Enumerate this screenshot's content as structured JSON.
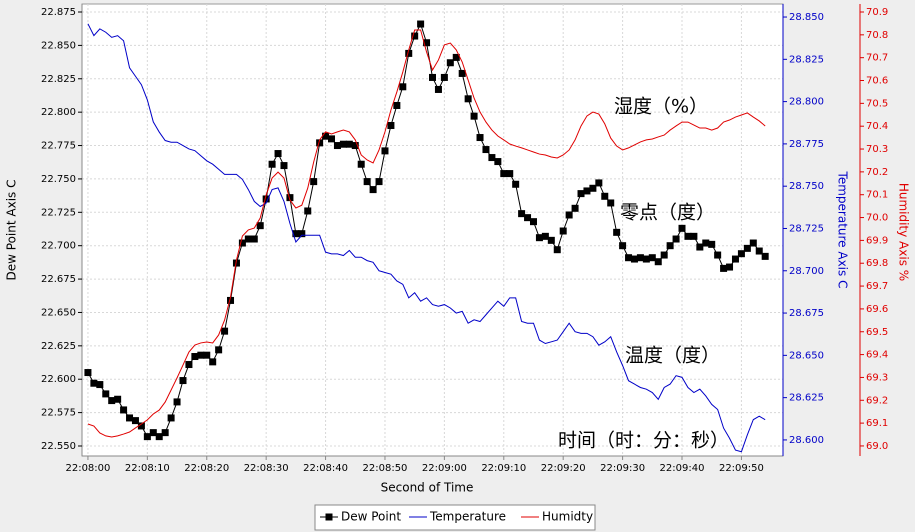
{
  "chart_data": {
    "type": "line",
    "x_label": "Second of Time",
    "y_label": "Dew Point Axis C",
    "y2_label": "Temperature Axis C",
    "y3_label": "Humidity Axis %",
    "annotations": [
      "湿度（%）",
      "零点（度）",
      "温度（度）",
      "时间（时：分：秒）"
    ],
    "grid": true,
    "legend": "bottom",
    "x": [
      "22:08:00",
      "22:08:01",
      "22:08:02",
      "22:08:03",
      "22:08:04",
      "22:08:05",
      "22:08:06",
      "22:08:07",
      "22:08:08",
      "22:08:09",
      "22:08:10",
      "22:08:11",
      "22:08:12",
      "22:08:13",
      "22:08:14",
      "22:08:15",
      "22:08:16",
      "22:08:17",
      "22:08:18",
      "22:08:19",
      "22:08:20",
      "22:08:21",
      "22:08:22",
      "22:08:23",
      "22:08:24",
      "22:08:25",
      "22:08:26",
      "22:08:27",
      "22:08:28",
      "22:08:29",
      "22:08:30",
      "22:08:31",
      "22:08:32",
      "22:08:33",
      "22:08:34",
      "22:08:35",
      "22:08:36",
      "22:08:37",
      "22:08:38",
      "22:08:39",
      "22:08:40",
      "22:08:41",
      "22:08:42",
      "22:08:43",
      "22:08:44",
      "22:08:45",
      "22:08:46",
      "22:08:47",
      "22:08:48",
      "22:08:49",
      "22:08:50",
      "22:08:51",
      "22:08:52",
      "22:08:53",
      "22:08:54",
      "22:08:55",
      "22:08:56",
      "22:08:57",
      "22:08:58",
      "22:08:59",
      "22:09:00",
      "22:09:01",
      "22:09:02",
      "22:09:03",
      "22:09:04",
      "22:09:05",
      "22:09:06",
      "22:09:07",
      "22:09:08",
      "22:09:09",
      "22:09:10",
      "22:09:11",
      "22:09:12",
      "22:09:13",
      "22:09:14",
      "22:09:15",
      "22:09:16",
      "22:09:17",
      "22:09:18",
      "22:09:19",
      "22:09:20",
      "22:09:21",
      "22:09:22",
      "22:09:23",
      "22:09:24",
      "22:09:25",
      "22:09:26",
      "22:09:27",
      "22:09:28",
      "22:09:29",
      "22:09:30",
      "22:09:31",
      "22:09:32",
      "22:09:33",
      "22:09:34",
      "22:09:35",
      "22:09:36",
      "22:09:37",
      "22:09:38",
      "22:09:39",
      "22:09:40",
      "22:09:41",
      "22:09:42",
      "22:09:43",
      "22:09:44",
      "22:09:45",
      "22:09:46",
      "22:09:47",
      "22:09:48",
      "22:09:49",
      "22:09:50",
      "22:09:51",
      "22:09:52",
      "22:09:53",
      "22:09:54"
    ],
    "xlim": [
      "22:07:59",
      "22:09:57"
    ],
    "xticks": [
      "22:08:00",
      "22:08:10",
      "22:08:20",
      "22:08:30",
      "22:08:40",
      "22:08:50",
      "22:09:00",
      "22:09:10",
      "22:09:20",
      "22:09:30",
      "22:09:40",
      "22:09:50"
    ],
    "ylim": [
      22.5425,
      22.881
    ],
    "yticks": [
      {
        "value": 22.55,
        "label": "22.550"
      },
      {
        "value": 22.575,
        "label": "22.575"
      },
      {
        "value": 22.6,
        "label": "22.600"
      },
      {
        "value": 22.625,
        "label": "22.625"
      },
      {
        "value": 22.65,
        "label": "22.650"
      },
      {
        "value": 22.675,
        "label": "22.675"
      },
      {
        "value": 22.7,
        "label": "22.700"
      },
      {
        "value": 22.725,
        "label": "22.725"
      },
      {
        "value": 22.75,
        "label": "22.750"
      },
      {
        "value": 22.775,
        "label": "22.775"
      },
      {
        "value": 22.8,
        "label": "22.800"
      },
      {
        "value": 22.825,
        "label": "22.825"
      },
      {
        "value": 22.85,
        "label": "22.850"
      },
      {
        "value": 22.875,
        "label": "22.875"
      }
    ],
    "y2lim": [
      28.5905,
      28.8577
    ],
    "y2ticks": [
      {
        "value": 28.6,
        "label": "28.600"
      },
      {
        "value": 28.625,
        "label": "28.625"
      },
      {
        "value": 28.65,
        "label": "28.650"
      },
      {
        "value": 28.675,
        "label": "28.675"
      },
      {
        "value": 28.7,
        "label": "28.700"
      },
      {
        "value": 28.725,
        "label": "28.725"
      },
      {
        "value": 28.75,
        "label": "28.750"
      },
      {
        "value": 28.775,
        "label": "28.775"
      },
      {
        "value": 28.8,
        "label": "28.800"
      },
      {
        "value": 28.825,
        "label": "28.825"
      },
      {
        "value": 28.85,
        "label": "28.850"
      }
    ],
    "y3lim": [
      68.956,
      70.935
    ],
    "y3ticks": [
      {
        "value": 69.0,
        "label": "69.0"
      },
      69.1,
      69.2,
      69.3,
      69.4,
      69.5,
      69.6,
      69.7,
      69.8,
      69.9,
      {
        "value": 70.0,
        "label": "70.0"
      },
      70.1,
      70.2,
      70.3,
      70.4,
      70.5,
      70.6,
      70.7,
      70.8,
      70.9
    ],
    "series": [
      {
        "name": "Dew Point",
        "color": "#000000",
        "axis": "y",
        "marker": "square",
        "values": [
          22.605,
          22.597,
          22.596,
          22.589,
          22.584,
          22.585,
          22.577,
          22.571,
          22.569,
          22.565,
          22.557,
          22.56,
          22.557,
          22.56,
          22.571,
          22.583,
          22.599,
          22.611,
          22.617,
          22.618,
          22.618,
          22.613,
          22.622,
          22.636,
          22.659,
          22.687,
          22.702,
          22.705,
          22.705,
          22.715,
          22.735,
          22.761,
          22.769,
          22.76,
          22.736,
          22.709,
          22.709,
          22.726,
          22.748,
          22.777,
          22.782,
          22.78,
          22.775,
          22.776,
          22.776,
          22.775,
          22.761,
          22.748,
          22.742,
          22.748,
          22.771,
          22.79,
          22.805,
          22.819,
          22.844,
          22.857,
          22.866,
          22.852,
          22.826,
          22.817,
          22.826,
          22.837,
          22.841,
          22.829,
          22.81,
          22.797,
          22.781,
          22.772,
          22.766,
          22.763,
          22.754,
          22.754,
          22.746,
          22.724,
          22.721,
          22.718,
          22.706,
          22.707,
          22.704,
          22.697,
          22.711,
          22.723,
          22.728,
          22.739,
          22.741,
          22.743,
          22.747,
          22.737,
          22.732,
          22.71,
          22.7,
          22.691,
          22.69,
          22.691,
          22.69,
          22.691,
          22.688,
          22.693,
          22.7,
          22.705,
          22.713,
          22.707,
          22.707,
          22.699,
          22.702,
          22.701,
          22.693,
          22.683,
          22.684,
          22.69,
          22.694,
          22.698,
          22.702,
          22.696,
          22.692
        ]
      },
      {
        "name": "Temperature",
        "color": "#0000c8",
        "axis": "y2",
        "values": [
          28.846,
          28.839,
          28.843,
          28.841,
          28.838,
          28.839,
          28.836,
          28.82,
          28.815,
          28.81,
          28.801,
          28.788,
          28.782,
          28.777,
          28.776,
          28.776,
          28.774,
          28.772,
          28.771,
          28.768,
          28.765,
          28.763,
          28.76,
          28.757,
          28.757,
          28.757,
          28.754,
          28.748,
          28.741,
          28.738,
          28.74,
          28.748,
          28.749,
          28.741,
          28.728,
          28.717,
          28.721,
          28.721,
          28.721,
          28.721,
          28.711,
          28.71,
          28.71,
          28.709,
          28.712,
          28.708,
          28.708,
          28.706,
          28.705,
          28.7,
          28.699,
          28.698,
          28.694,
          28.692,
          28.684,
          28.687,
          28.682,
          28.684,
          28.68,
          28.679,
          28.68,
          28.678,
          28.675,
          28.676,
          28.669,
          28.671,
          28.67,
          28.674,
          28.678,
          28.682,
          28.679,
          28.684,
          28.684,
          28.67,
          28.669,
          28.669,
          28.659,
          28.657,
          28.658,
          28.659,
          28.664,
          28.669,
          28.664,
          28.663,
          28.663,
          28.661,
          28.656,
          28.658,
          28.661,
          28.652,
          28.644,
          28.635,
          28.633,
          28.631,
          28.63,
          28.628,
          28.624,
          28.631,
          28.633,
          28.638,
          28.637,
          28.631,
          28.628,
          28.63,
          28.626,
          28.621,
          28.618,
          28.607,
          28.601,
          28.594,
          28.593,
          28.603,
          28.612,
          28.614,
          28.612
        ]
      },
      {
        "name": "Humidty",
        "color": "#e00000",
        "axis": "y3",
        "values": [
          69.096,
          69.087,
          69.057,
          69.044,
          69.039,
          69.044,
          69.052,
          69.061,
          69.079,
          69.096,
          69.114,
          69.14,
          69.157,
          69.192,
          69.245,
          69.298,
          69.354,
          69.411,
          69.442,
          69.451,
          69.455,
          69.451,
          69.486,
          69.551,
          69.652,
          69.814,
          69.919,
          69.946,
          69.954,
          69.998,
          70.099,
          70.173,
          70.199,
          70.173,
          70.077,
          70.042,
          70.054,
          70.129,
          70.243,
          70.34,
          70.375,
          70.366,
          70.375,
          70.383,
          70.375,
          70.34,
          70.274,
          70.252,
          70.239,
          70.296,
          70.375,
          70.471,
          70.55,
          70.637,
          70.734,
          70.821,
          70.821,
          70.725,
          70.646,
          70.69,
          70.756,
          70.764,
          70.734,
          70.681,
          70.602,
          70.523,
          70.462,
          70.418,
          70.383,
          70.357,
          70.34,
          70.322,
          70.313,
          70.305,
          70.296,
          70.287,
          70.278,
          70.274,
          70.265,
          70.261,
          70.274,
          70.296,
          70.34,
          70.401,
          70.445,
          70.462,
          70.453,
          70.41,
          70.348,
          70.313,
          70.296,
          70.305,
          70.318,
          70.331,
          70.34,
          70.344,
          70.353,
          70.361,
          70.383,
          70.401,
          70.418,
          70.418,
          70.405,
          70.392,
          70.392,
          70.383,
          70.392,
          70.418,
          70.427,
          70.44,
          70.449,
          70.458,
          70.44,
          70.423,
          70.401
        ]
      }
    ]
  }
}
